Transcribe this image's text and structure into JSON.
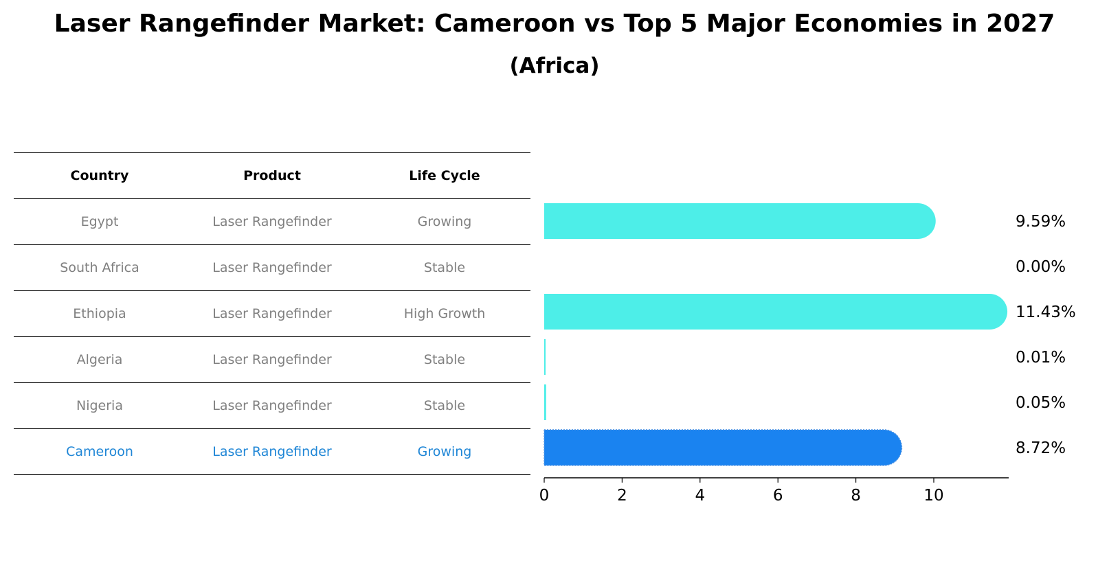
{
  "title": "Laser Rangefinder Market: Cameroon vs Top 5 Major Economies in 2027",
  "subtitle": "(Africa)",
  "table": {
    "headers": [
      "Country",
      "Product",
      "Life Cycle"
    ],
    "rows": [
      {
        "country": "Egypt",
        "product": "Laser Rangefinder",
        "lifecycle": "Growing"
      },
      {
        "country": "South Africa",
        "product": "Laser Rangefinder",
        "lifecycle": "Stable"
      },
      {
        "country": "Ethiopia",
        "product": "Laser Rangefinder",
        "lifecycle": "High Growth"
      },
      {
        "country": "Algeria",
        "product": "Laser Rangefinder",
        "lifecycle": "Stable"
      },
      {
        "country": "Nigeria",
        "product": "Laser Rangefinder",
        "lifecycle": "Stable"
      },
      {
        "country": "Cameroon",
        "product": "Laser Rangefinder",
        "lifecycle": "Growing"
      }
    ]
  },
  "colors": {
    "bar": "#4deee8",
    "highlight": "#1a83f0",
    "highlight_text": "#1f86d6",
    "muted_text": "#808080"
  },
  "chart_data": {
    "type": "bar",
    "orientation": "horizontal",
    "categories": [
      "Egypt",
      "South Africa",
      "Ethiopia",
      "Algeria",
      "Nigeria",
      "Cameroon"
    ],
    "values": [
      9.59,
      0.0,
      11.43,
      0.01,
      0.05,
      8.72
    ],
    "value_labels": [
      "9.59%",
      "0.00%",
      "11.43%",
      "0.01%",
      "0.05%",
      "8.72%"
    ],
    "highlight": "Cameroon",
    "xlim": [
      0,
      12
    ],
    "xticks": [
      0,
      2,
      4,
      6,
      8,
      10
    ],
    "xlabel": "",
    "ylabel": "",
    "grid": false
  }
}
